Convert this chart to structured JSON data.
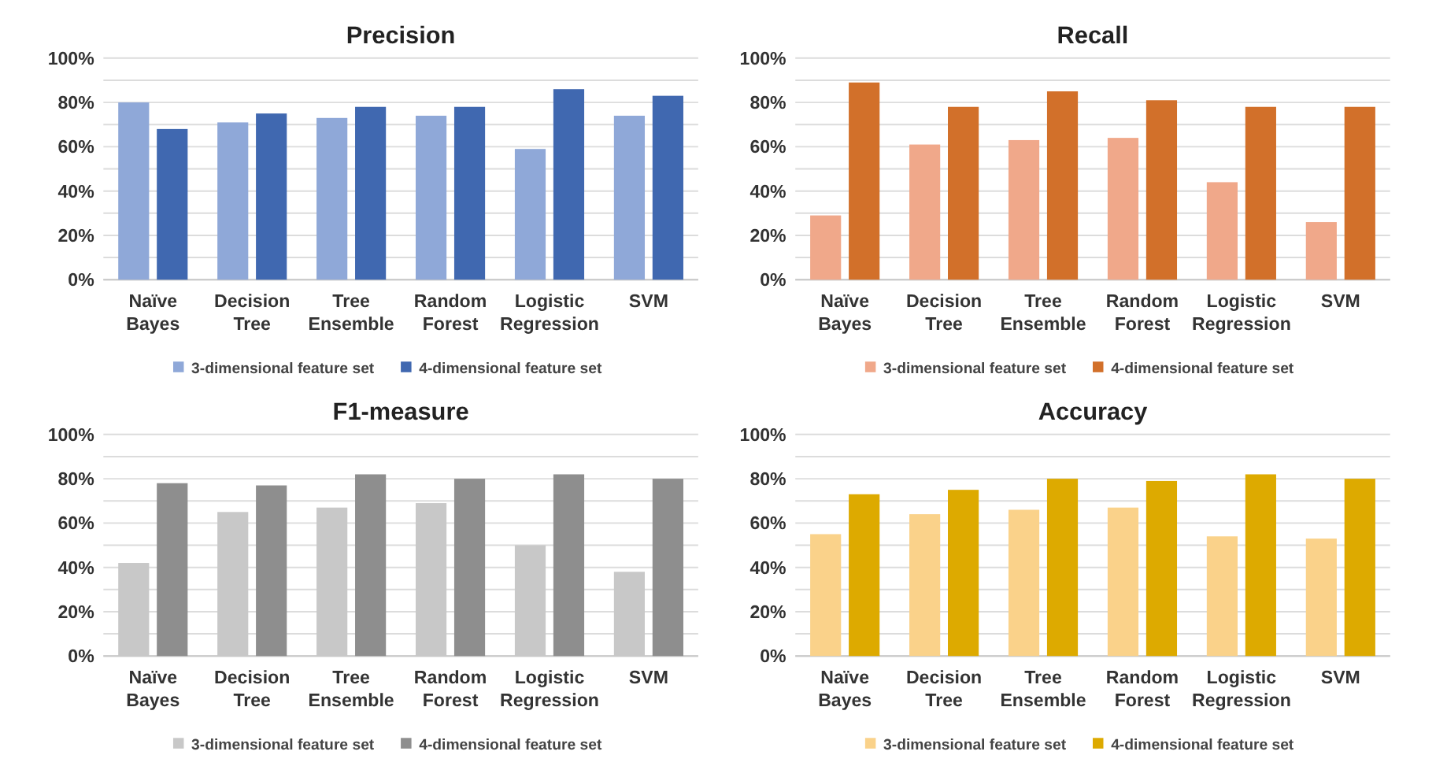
{
  "chart_data": [
    {
      "type": "bar",
      "title": "Precision",
      "categories": [
        "Naïve Bayes",
        "Decision Tree",
        "Tree Ensemble",
        "Random Forest",
        "Logistic Regression",
        "SVM"
      ],
      "series": [
        {
          "name": "3-dimensional feature set",
          "color": "#8fa8d8",
          "values": [
            80,
            71,
            73,
            74,
            59,
            74
          ]
        },
        {
          "name": "4-dimensional feature set",
          "color": "#4068b0",
          "values": [
            68,
            75,
            78,
            78,
            86,
            83
          ]
        }
      ],
      "ylim": [
        0,
        100
      ],
      "yticks": [
        {
          "value": 0,
          "label": "0%"
        },
        {
          "value": 10,
          "label": null
        },
        {
          "value": 20,
          "label": "20%"
        },
        {
          "value": 30,
          "label": null
        },
        {
          "value": 40,
          "label": "40%"
        },
        {
          "value": 50,
          "label": null
        },
        {
          "value": 60,
          "label": "60%"
        },
        {
          "value": 70,
          "label": null
        },
        {
          "value": 80,
          "label": "80%"
        },
        {
          "value": 90,
          "label": null
        },
        {
          "value": 100,
          "label": "100%"
        }
      ],
      "grid": "y",
      "legend": "bottom"
    },
    {
      "type": "bar",
      "title": "Recall",
      "categories": [
        "Naïve Bayes",
        "Decision Tree",
        "Tree Ensemble",
        "Random Forest",
        "Logistic Regression",
        "SVM"
      ],
      "series": [
        {
          "name": "3-dimensional feature set",
          "color": "#f0a88a",
          "values": [
            29,
            61,
            63,
            64,
            44,
            26
          ]
        },
        {
          "name": "4-dimensional feature set",
          "color": "#d2702a",
          "values": [
            89,
            78,
            85,
            81,
            78,
            78
          ]
        }
      ],
      "ylim": [
        0,
        100
      ],
      "yticks": [
        {
          "value": 0,
          "label": "0%"
        },
        {
          "value": 10,
          "label": null
        },
        {
          "value": 20,
          "label": "20%"
        },
        {
          "value": 30,
          "label": null
        },
        {
          "value": 40,
          "label": "40%"
        },
        {
          "value": 50,
          "label": null
        },
        {
          "value": 60,
          "label": "60%"
        },
        {
          "value": 70,
          "label": null
        },
        {
          "value": 80,
          "label": "80%"
        },
        {
          "value": 90,
          "label": null
        },
        {
          "value": 100,
          "label": "100%"
        }
      ],
      "grid": "y",
      "legend": "bottom"
    },
    {
      "type": "bar",
      "title": "F1-measure",
      "categories": [
        "Naïve Bayes",
        "Decision Tree",
        "Tree Ensemble",
        "Random Forest",
        "Logistic Regression",
        "SVM"
      ],
      "series": [
        {
          "name": "3-dimensional feature set",
          "color": "#c8c8c8",
          "values": [
            42,
            65,
            67,
            69,
            50,
            38
          ]
        },
        {
          "name": "4-dimensional feature set",
          "color": "#8e8e8e",
          "values": [
            78,
            77,
            82,
            80,
            82,
            80
          ]
        }
      ],
      "ylim": [
        0,
        100
      ],
      "yticks": [
        {
          "value": 0,
          "label": "0%"
        },
        {
          "value": 10,
          "label": null
        },
        {
          "value": 20,
          "label": "20%"
        },
        {
          "value": 30,
          "label": null
        },
        {
          "value": 40,
          "label": "40%"
        },
        {
          "value": 50,
          "label": null
        },
        {
          "value": 60,
          "label": "60%"
        },
        {
          "value": 70,
          "label": null
        },
        {
          "value": 80,
          "label": "80%"
        },
        {
          "value": 90,
          "label": null
        },
        {
          "value": 100,
          "label": "100%"
        }
      ],
      "grid": "y",
      "legend": "bottom"
    },
    {
      "type": "bar",
      "title": "Accuracy",
      "categories": [
        "Naïve Bayes",
        "Decision Tree",
        "Tree Ensemble",
        "Random Forest",
        "Logistic Regression",
        "SVM"
      ],
      "series": [
        {
          "name": "3-dimensional feature set",
          "color": "#fad28a",
          "values": [
            55,
            64,
            66,
            67,
            54,
            53
          ]
        },
        {
          "name": "4-dimensional feature set",
          "color": "#ddaa00",
          "values": [
            73,
            75,
            80,
            79,
            82,
            80
          ]
        }
      ],
      "ylim": [
        0,
        100
      ],
      "yticks": [
        {
          "value": 0,
          "label": "0%"
        },
        {
          "value": 10,
          "label": null
        },
        {
          "value": 20,
          "label": "20%"
        },
        {
          "value": 30,
          "label": null
        },
        {
          "value": 40,
          "label": "40%"
        },
        {
          "value": 50,
          "label": null
        },
        {
          "value": 60,
          "label": "60%"
        },
        {
          "value": 70,
          "label": null
        },
        {
          "value": 80,
          "label": "80%"
        },
        {
          "value": 90,
          "label": null
        },
        {
          "value": 100,
          "label": "100%"
        }
      ],
      "grid": "y",
      "legend": "bottom"
    }
  ]
}
